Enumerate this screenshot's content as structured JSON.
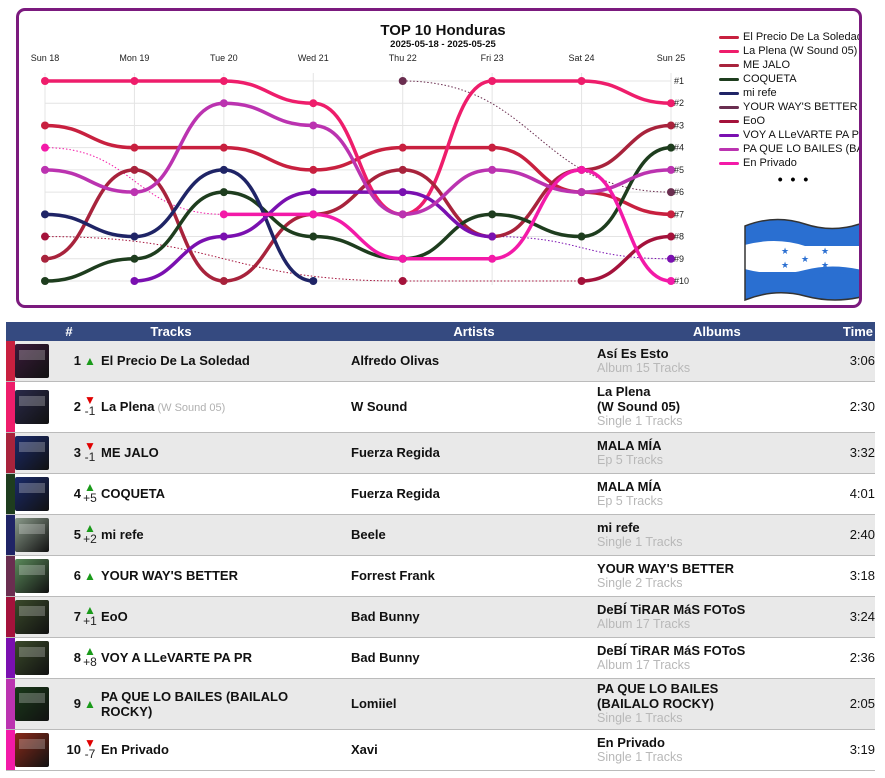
{
  "chart_data": {
    "type": "line",
    "title": "TOP 10 Honduras",
    "subtitle": "2025-05-18 - 2025-05-25",
    "x": [
      "Sun 18",
      "Mon 19",
      "Tue 20",
      "Wed 21",
      "Thu 22",
      "Fri 23",
      "Sat 24",
      "Sun 25"
    ],
    "y_ticks": [
      "#1",
      "#2",
      "#3",
      "#4",
      "#5",
      "#6",
      "#7",
      "#8",
      "#9",
      "#10"
    ],
    "y_axis": "rank (1 = top)",
    "ylim": [
      1,
      10
    ],
    "grid": true,
    "legend_position": "right",
    "legend_more": "• • •",
    "series": [
      {
        "name": "El Precio De La Soledad",
        "color": "#c8203f",
        "ranks": [
          3,
          4,
          4,
          5,
          4,
          4,
          6,
          7
        ]
      },
      {
        "name": "La Plena (W Sound 05)",
        "color": "#ee1d6b",
        "ranks": [
          1,
          1,
          1,
          2,
          7,
          1,
          1,
          2
        ]
      },
      {
        "name": "ME JALO",
        "color": "#a8233c",
        "ranks": [
          9,
          5,
          10,
          7,
          5,
          8,
          5,
          3
        ]
      },
      {
        "name": "COQUETA",
        "color": "#1e3d1e",
        "ranks": [
          10,
          9,
          6,
          8,
          9,
          7,
          8,
          4
        ]
      },
      {
        "name": "mi refe",
        "color": "#1f2466",
        "ranks": [
          7,
          8,
          5,
          10,
          null,
          null,
          null,
          null
        ]
      },
      {
        "name": "YOUR WAY'S BETTER",
        "color": "#6a2e50",
        "ranks": [
          null,
          null,
          null,
          null,
          1,
          null,
          null,
          6
        ]
      },
      {
        "name": "EoO",
        "color": "#a4123b",
        "ranks": [
          8,
          null,
          null,
          null,
          10,
          null,
          10,
          8
        ]
      },
      {
        "name": "VOY A LLeVARTE PA PR",
        "color": "#7a10b0",
        "ranks": [
          null,
          10,
          8,
          6,
          6,
          8,
          null,
          9
        ]
      },
      {
        "name": "PA QUE LO BAILES (BAILALO ROCKY)",
        "color": "#bb33b0",
        "ranks": [
          5,
          6,
          2,
          3,
          7,
          5,
          6,
          5
        ]
      },
      {
        "name": "En Privado",
        "color": "#f31aa8",
        "ranks": [
          4,
          null,
          7,
          7,
          9,
          9,
          5,
          10
        ]
      }
    ],
    "legend_labels": [
      "El Precio De La Soledad",
      "La Plena (W Sound 05)",
      "ME JALO",
      "COQUETA",
      "mi refe",
      "YOUR WAY'S BETTER",
      "EoO",
      "VOY A LLeVARTE PA PR",
      "PA QUE LO BAILES (BAIL...",
      "En Privado"
    ]
  },
  "table": {
    "headers": {
      "rank": "#",
      "tracks": "Tracks",
      "artists": "Artists",
      "albums": "Albums",
      "time": "Time"
    },
    "rows": [
      {
        "rank": "1",
        "dir": "up",
        "move": "",
        "title": "El Precio De La Soledad",
        "subtitle": "",
        "artist": "Alfredo Olivas",
        "album": "Así Es Esto",
        "album_info": "Album 15 Tracks",
        "time": "3:06",
        "stripe": "#c8203f",
        "cover": "#3a1a3a"
      },
      {
        "rank": "2",
        "dir": "down",
        "move": "-1",
        "title": "La Plena",
        "subtitle": "(W Sound 05)",
        "artist": "W Sound",
        "album": "La Plena\n(W Sound 05)",
        "album_info": "Single 1 Tracks",
        "time": "2:30",
        "stripe": "#ee1d6b",
        "cover": "#2a2a4a"
      },
      {
        "rank": "3",
        "dir": "down",
        "move": "-1",
        "title": "ME JALO",
        "subtitle": "",
        "artist": "Fuerza Regida",
        "album": "MALA MÍA",
        "album_info": "Ep 5 Tracks",
        "time": "3:32",
        "stripe": "#a8233c",
        "cover": "#1a2a6a"
      },
      {
        "rank": "4",
        "dir": "up",
        "move": "+5",
        "title": "COQUETA",
        "subtitle": "",
        "artist": "Fuerza Regida",
        "album": "MALA MÍA",
        "album_info": "Ep 5 Tracks",
        "time": "4:01",
        "stripe": "#1e3d1e",
        "cover": "#1a2a6a"
      },
      {
        "rank": "5",
        "dir": "up",
        "move": "+2",
        "title": "mi refe",
        "subtitle": "",
        "artist": "Beele",
        "album": "mi refe",
        "album_info": "Single 1 Tracks",
        "time": "2:40",
        "stripe": "#1f2466",
        "cover": "#8a9a8a"
      },
      {
        "rank": "6",
        "dir": "up",
        "move": "",
        "title": "YOUR WAY'S BETTER",
        "subtitle": "",
        "artist": "Forrest Frank",
        "album": "YOUR WAY'S BETTER",
        "album_info": "Single 2 Tracks",
        "time": "3:18",
        "stripe": "#6a2e50",
        "cover": "#5a8a5a"
      },
      {
        "rank": "7",
        "dir": "up",
        "move": "+1",
        "title": "EoO",
        "subtitle": "",
        "artist": "Bad Bunny",
        "album": "DeBÍ TiRAR MáS FOToS",
        "album_info": "Album 17 Tracks",
        "time": "3:24",
        "stripe": "#a4123b",
        "cover": "#3a4a2a"
      },
      {
        "rank": "8",
        "dir": "up",
        "move": "+8",
        "title": "VOY A LLeVARTE PA PR",
        "subtitle": "",
        "artist": "Bad Bunny",
        "album": "DeBÍ TiRAR MáS FOToS",
        "album_info": "Album 17 Tracks",
        "time": "2:36",
        "stripe": "#7a10b0",
        "cover": "#3a4a2a"
      },
      {
        "rank": "9",
        "dir": "up",
        "move": "",
        "title": "PA QUE LO BAILES (BAILALO\nROCKY)",
        "subtitle": "",
        "artist": "Lomiiel",
        "album": "PA QUE LO BAILES\n(BAILALO ROCKY)",
        "album_info": "Single 1 Tracks",
        "time": "2:05",
        "stripe": "#bb33b0",
        "cover": "#1a3a1a"
      },
      {
        "rank": "10",
        "dir": "down",
        "move": "-7",
        "title": "En Privado",
        "subtitle": "",
        "artist": "Xavi",
        "album": "En Privado",
        "album_info": "Single 1 Tracks",
        "time": "3:19",
        "stripe": "#f31aa8",
        "cover": "#8a2a1a"
      }
    ]
  }
}
